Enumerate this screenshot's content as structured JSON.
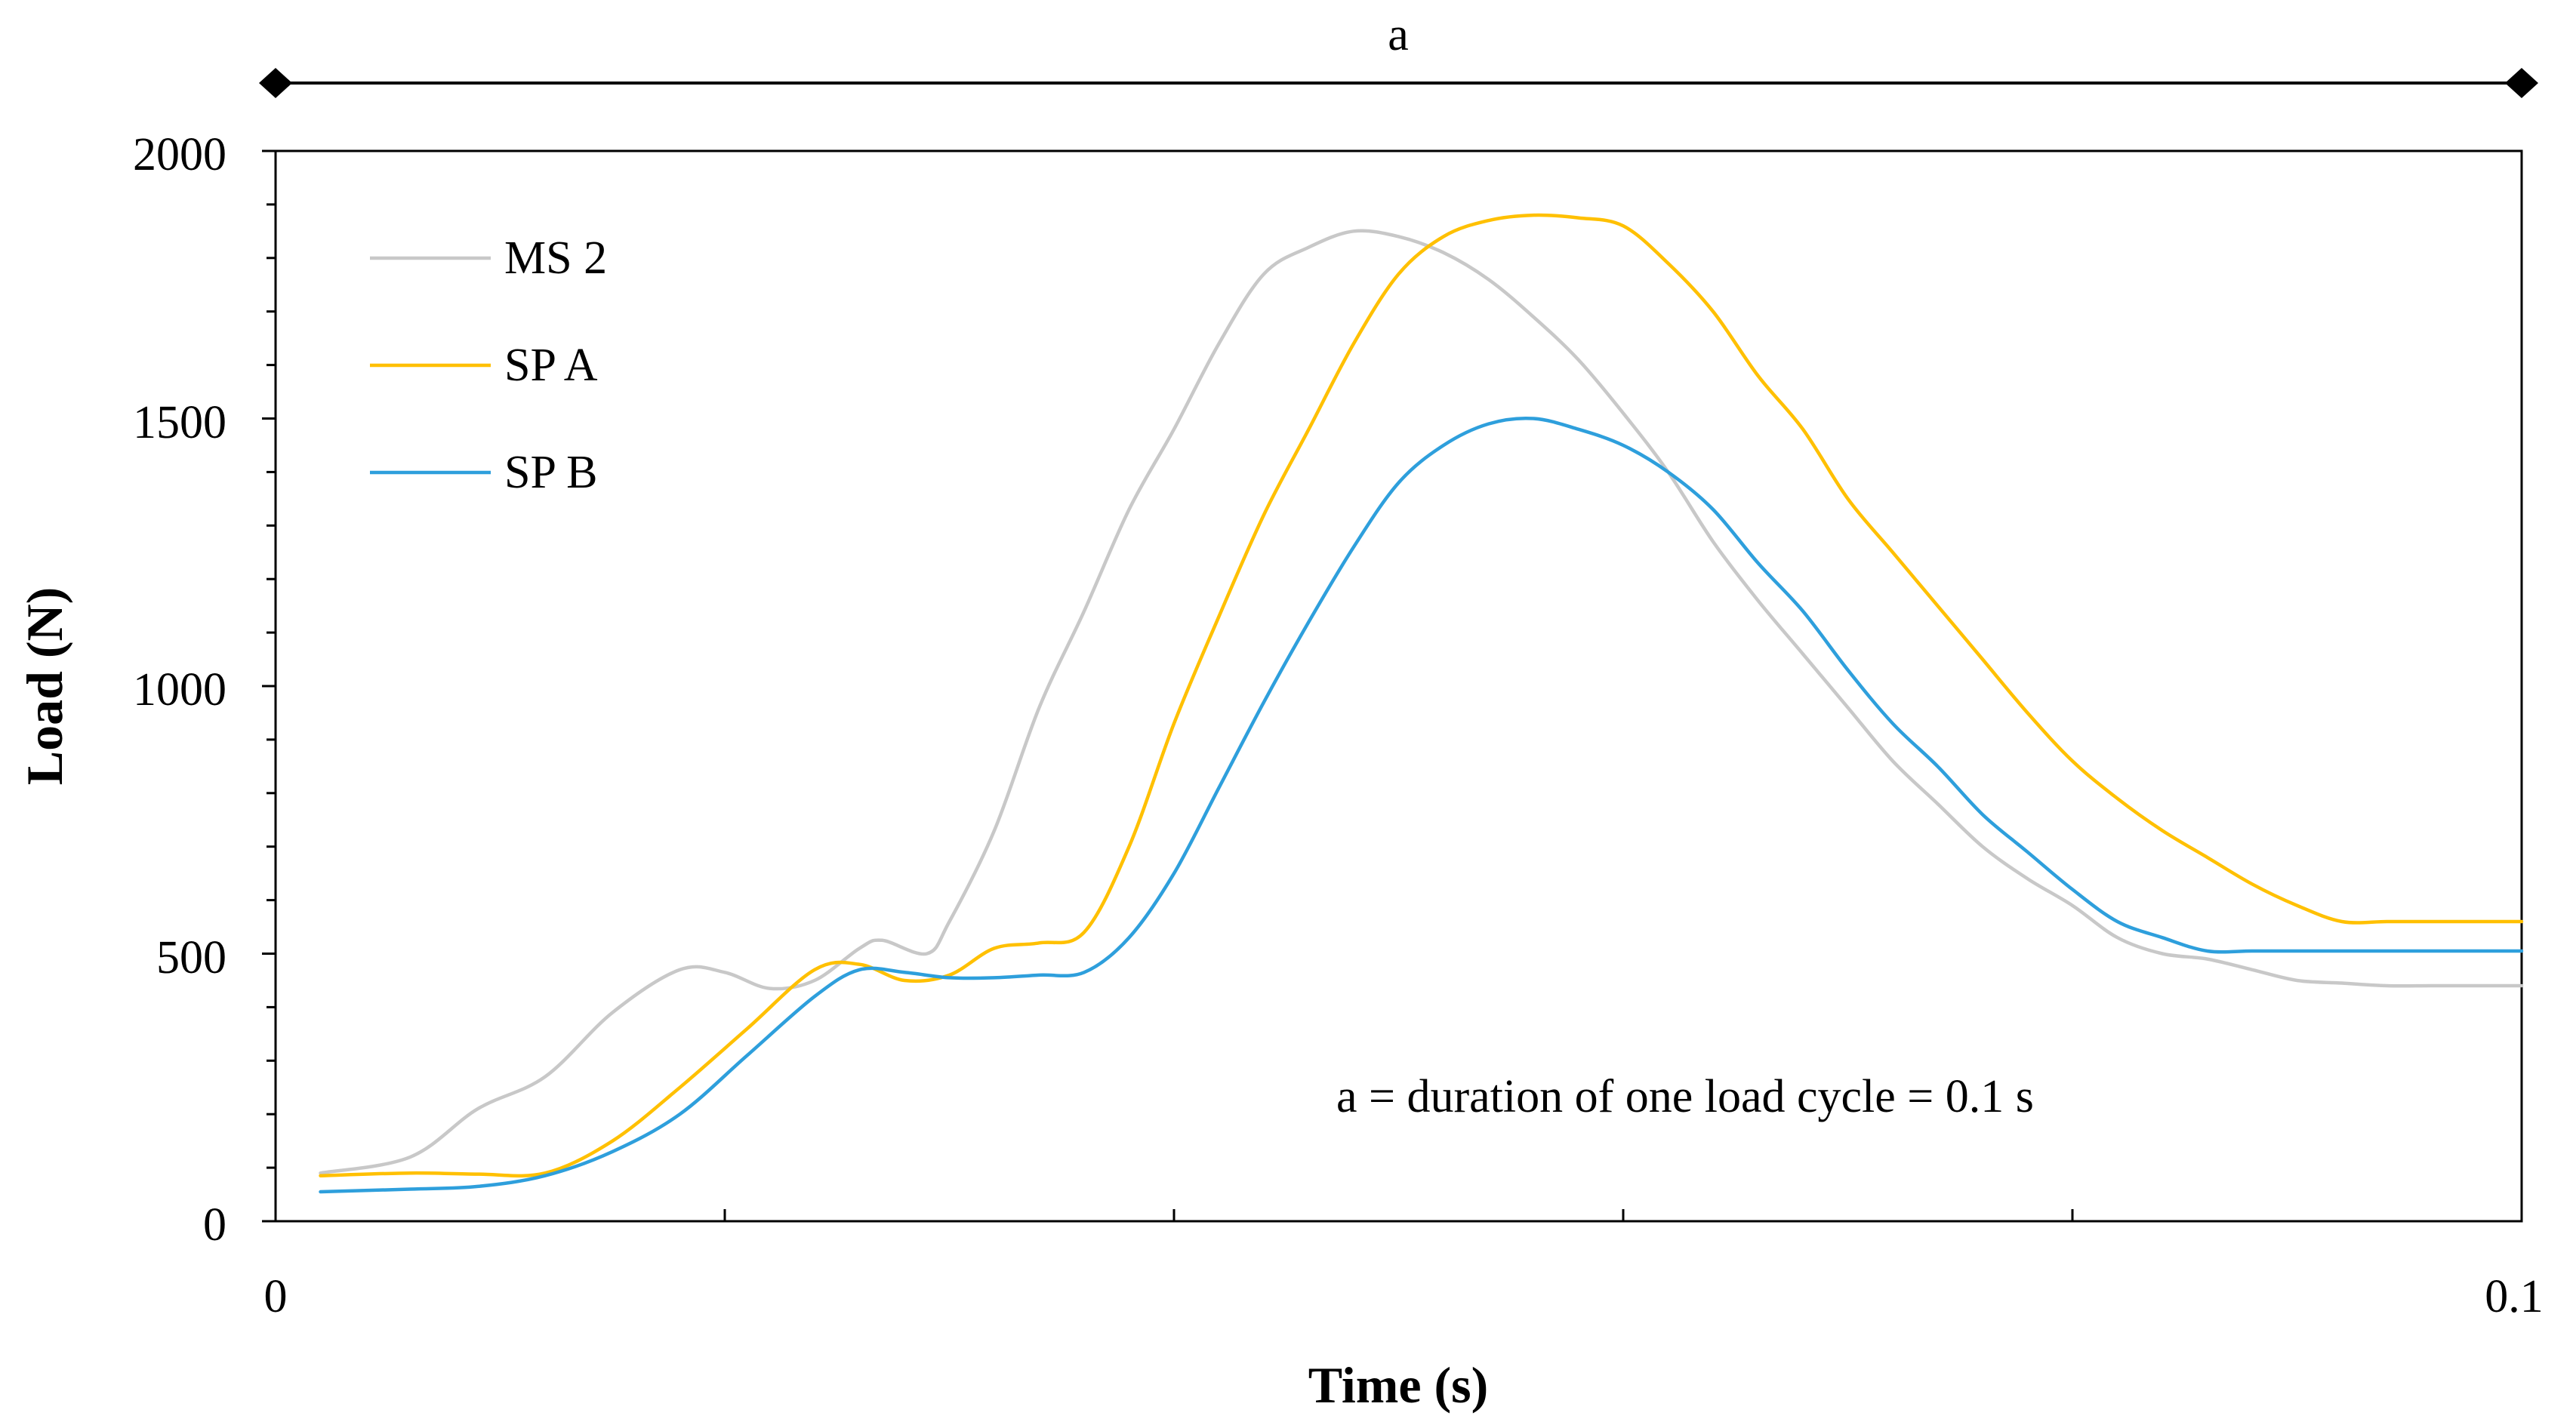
{
  "chart_data": {
    "type": "line",
    "title": "",
    "xlabel": "Time (s)",
    "ylabel": "Load (N)",
    "xlim": [
      0,
      0.1
    ],
    "ylim": [
      0,
      2000
    ],
    "x_tick_labels": [
      {
        "value": 0,
        "label": "0"
      },
      {
        "value": 0.1,
        "label": "0.1"
      }
    ],
    "x_minor_ticks": [
      0.02,
      0.04,
      0.06,
      0.08
    ],
    "y_ticks": [
      0,
      500,
      1000,
      1500,
      2000
    ],
    "y_tick_labels": [
      "0",
      "500",
      "1000",
      "1500",
      "2000"
    ],
    "y_minor_step": 100,
    "grid": false,
    "legend_position": "top-left",
    "span_annotation": {
      "label": "a",
      "from": 0,
      "to": 0.1
    },
    "note": "a = duration of one load cycle = 0.1 s",
    "series": [
      {
        "name": "MS 2",
        "color": "#c8c8c8",
        "x": [
          0.002,
          0.006,
          0.009,
          0.012,
          0.015,
          0.018,
          0.02,
          0.022,
          0.024,
          0.026,
          0.027,
          0.029,
          0.03,
          0.032,
          0.034,
          0.036,
          0.038,
          0.04,
          0.042,
          0.044,
          0.046,
          0.048,
          0.05,
          0.052,
          0.054,
          0.056,
          0.058,
          0.06,
          0.062,
          0.064,
          0.066,
          0.068,
          0.07,
          0.072,
          0.074,
          0.076,
          0.078,
          0.08,
          0.082,
          0.084,
          0.086,
          0.088,
          0.09,
          0.092,
          0.094,
          0.096,
          0.098,
          0.1
        ],
        "y": [
          90,
          120,
          210,
          270,
          390,
          470,
          465,
          435,
          450,
          510,
          525,
          500,
          560,
          730,
          960,
          1140,
          1330,
          1480,
          1640,
          1770,
          1820,
          1850,
          1840,
          1810,
          1760,
          1690,
          1610,
          1510,
          1400,
          1270,
          1160,
          1060,
          960,
          860,
          780,
          700,
          640,
          590,
          530,
          500,
          490,
          470,
          450,
          445,
          440,
          440,
          440,
          440
        ]
      },
      {
        "name": "SP A",
        "color": "#ffc000",
        "x": [
          0.002,
          0.006,
          0.009,
          0.012,
          0.015,
          0.018,
          0.021,
          0.024,
          0.026,
          0.028,
          0.03,
          0.032,
          0.034,
          0.036,
          0.038,
          0.04,
          0.042,
          0.044,
          0.046,
          0.048,
          0.05,
          0.052,
          0.054,
          0.056,
          0.058,
          0.06,
          0.062,
          0.064,
          0.066,
          0.068,
          0.07,
          0.072,
          0.074,
          0.076,
          0.078,
          0.08,
          0.082,
          0.084,
          0.086,
          0.088,
          0.09,
          0.092,
          0.094,
          0.096,
          0.098,
          0.1
        ],
        "y": [
          85,
          90,
          88,
          90,
          150,
          250,
          360,
          470,
          480,
          450,
          460,
          510,
          520,
          540,
          700,
          930,
          1130,
          1320,
          1480,
          1640,
          1770,
          1840,
          1870,
          1880,
          1875,
          1860,
          1790,
          1700,
          1580,
          1480,
          1350,
          1250,
          1150,
          1050,
          950,
          860,
          790,
          730,
          680,
          630,
          590,
          560,
          560,
          560,
          560,
          560
        ]
      },
      {
        "name": "SP B",
        "color": "#2e9fdc",
        "x": [
          0.002,
          0.006,
          0.009,
          0.012,
          0.015,
          0.018,
          0.021,
          0.024,
          0.026,
          0.028,
          0.03,
          0.032,
          0.034,
          0.036,
          0.038,
          0.04,
          0.042,
          0.044,
          0.046,
          0.048,
          0.05,
          0.052,
          0.054,
          0.056,
          0.058,
          0.06,
          0.062,
          0.064,
          0.066,
          0.068,
          0.07,
          0.072,
          0.074,
          0.076,
          0.078,
          0.08,
          0.082,
          0.084,
          0.086,
          0.088,
          0.09,
          0.092,
          0.094,
          0.096,
          0.098,
          0.1
        ],
        "y": [
          55,
          60,
          65,
          85,
          130,
          200,
          310,
          420,
          470,
          465,
          455,
          455,
          460,
          465,
          530,
          650,
          810,
          970,
          1120,
          1260,
          1380,
          1450,
          1490,
          1500,
          1480,
          1450,
          1400,
          1330,
          1230,
          1140,
          1030,
          930,
          850,
          760,
          690,
          620,
          560,
          530,
          505,
          505,
          505,
          505,
          505,
          505,
          505,
          505
        ]
      }
    ]
  }
}
